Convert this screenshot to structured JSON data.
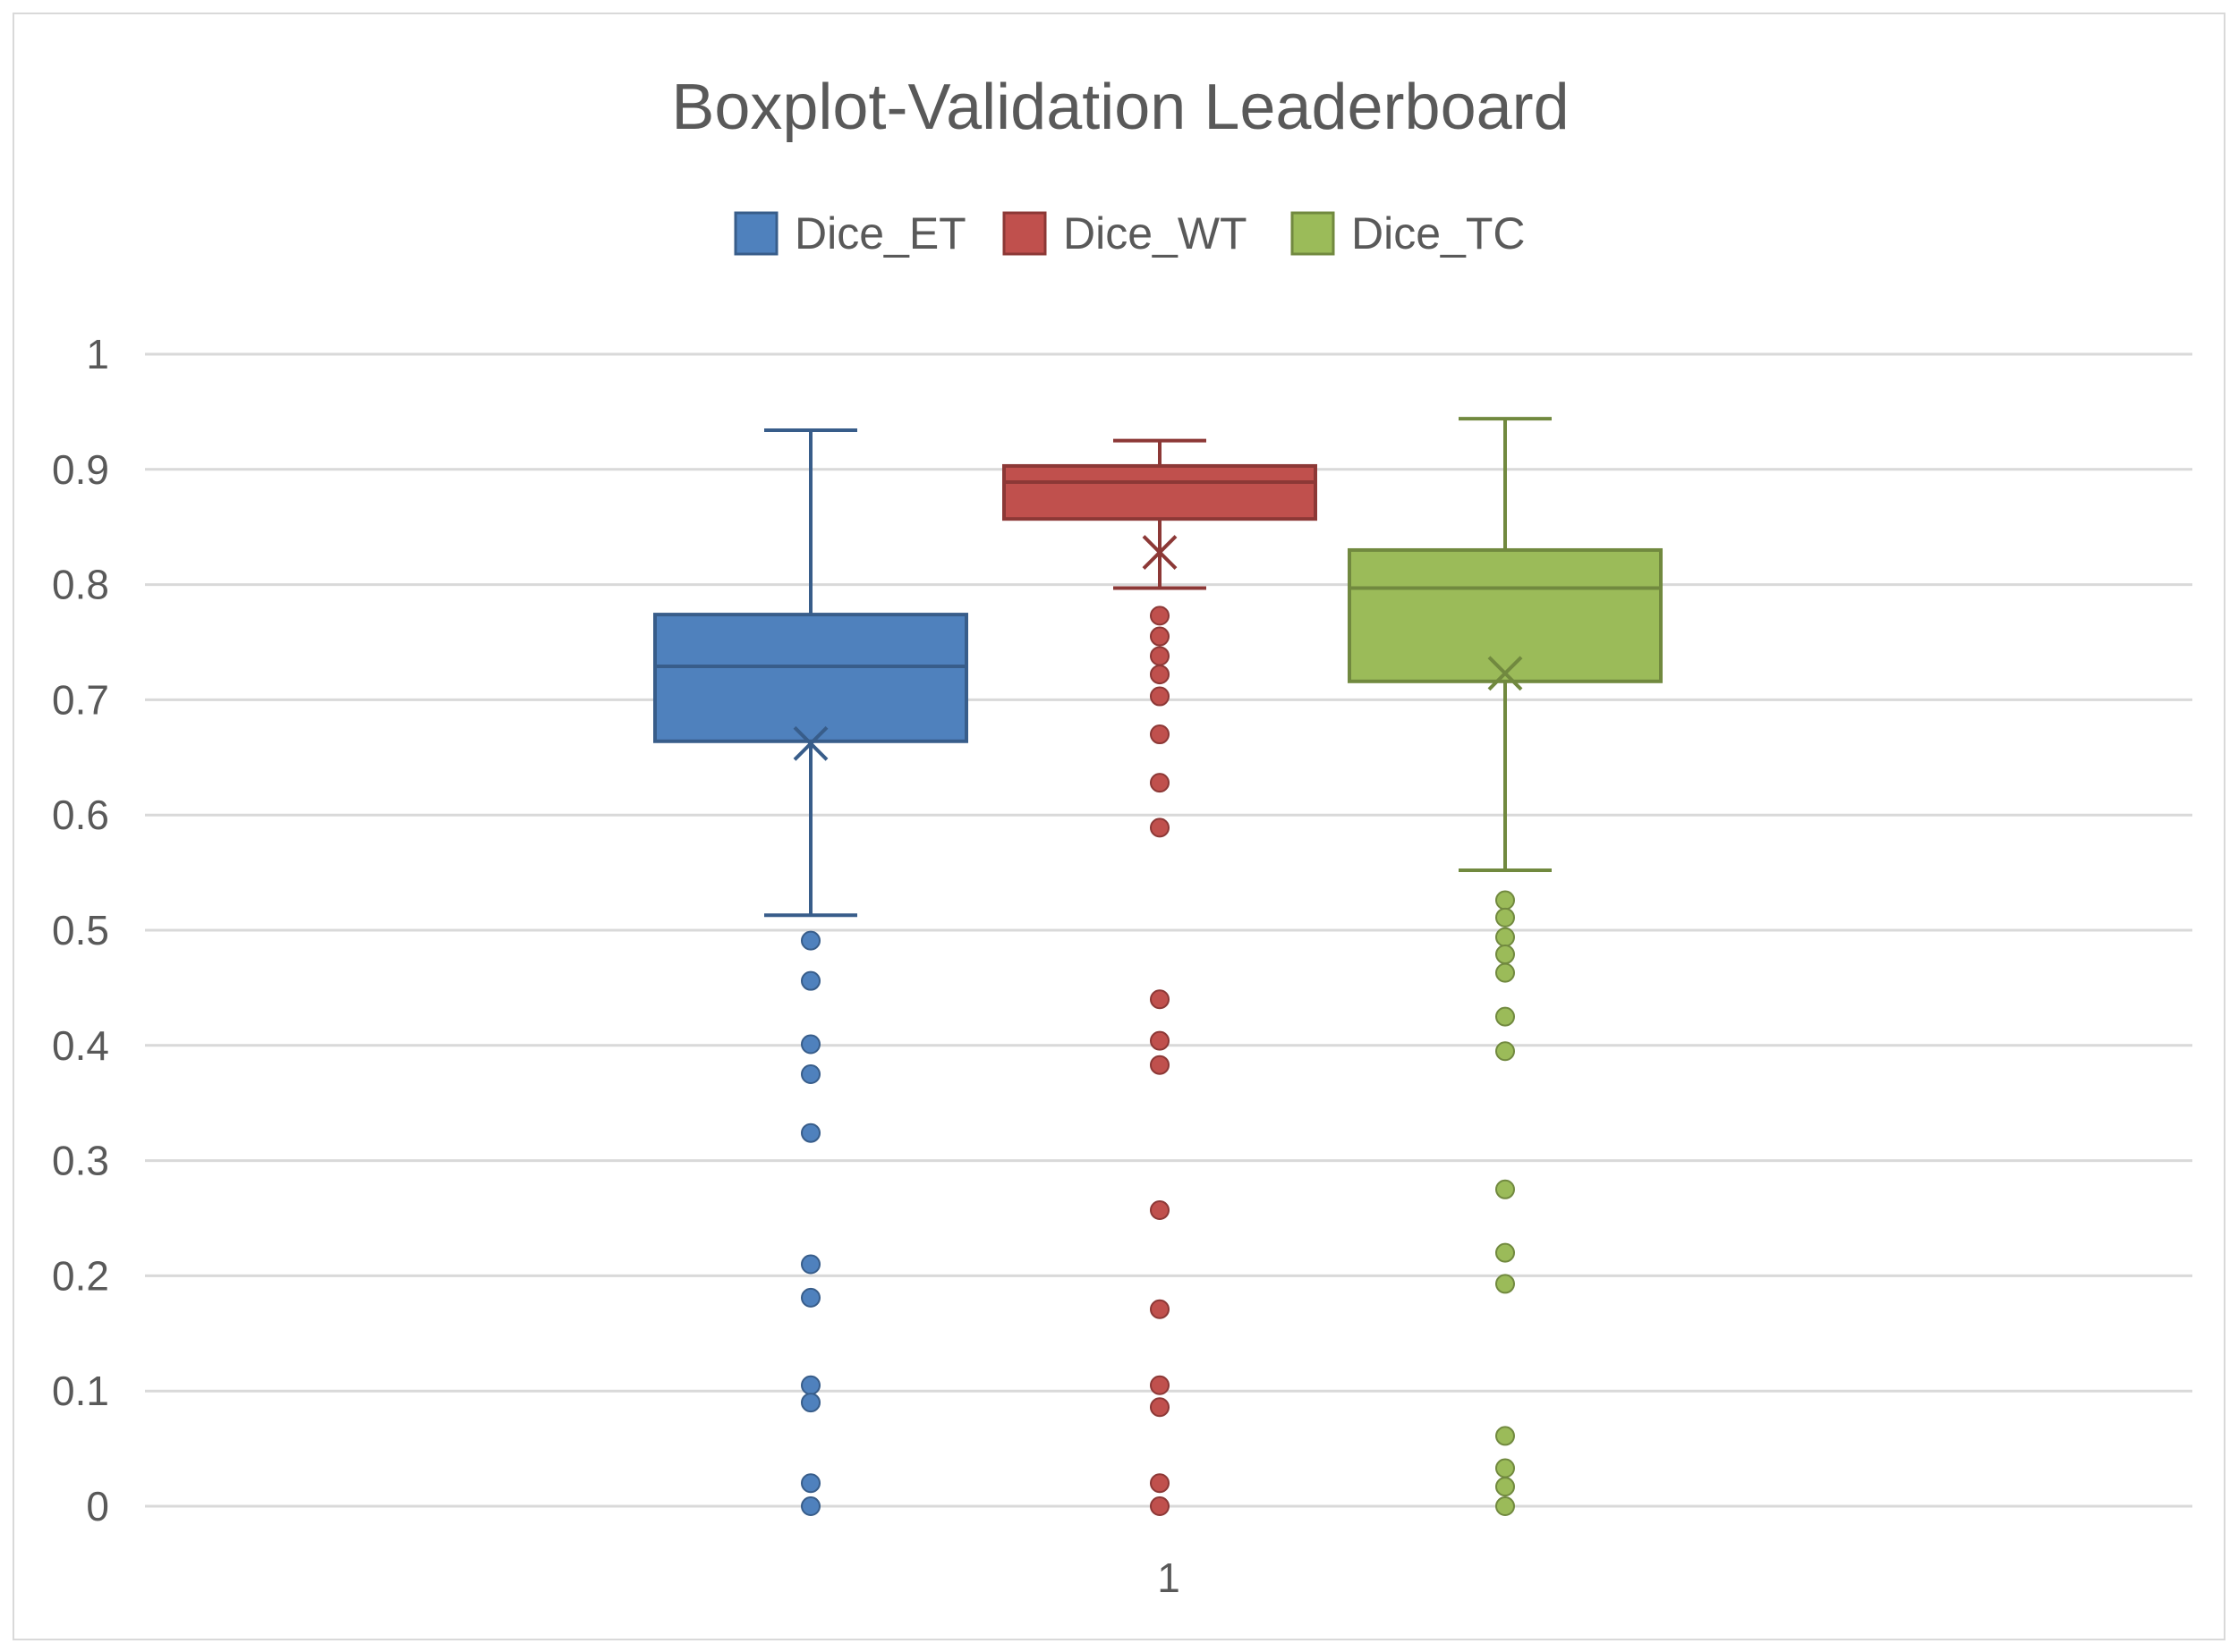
{
  "chart_data": {
    "type": "boxplot",
    "title": "Boxplot-Validation Leaderboard",
    "xlabel": "",
    "ylabel": "",
    "categories": [
      "1"
    ],
    "ylim": [
      0,
      1
    ],
    "yticks": [
      "0",
      "0.1",
      "0.2",
      "0.3",
      "0.4",
      "0.5",
      "0.6",
      "0.7",
      "0.8",
      "0.9",
      "1"
    ],
    "grid": true,
    "legend_position": "top",
    "series": [
      {
        "name": "Dice_ET",
        "color": "#4f81bd",
        "edge_color": "#385d8a",
        "whisker_low": 0.513,
        "q1": 0.664,
        "median": 0.729,
        "q3": 0.774,
        "whisker_high": 0.934,
        "mean": 0.662,
        "outliers": [
          0.491,
          0.456,
          0.401,
          0.375,
          0.324,
          0.21,
          0.181,
          0.105,
          0.09,
          0.02,
          0.0
        ]
      },
      {
        "name": "Dice_WT",
        "color": "#c0504d",
        "edge_color": "#8c3836",
        "whisker_low": 0.797,
        "q1": 0.857,
        "median": 0.889,
        "q3": 0.903,
        "whisker_high": 0.925,
        "mean": 0.828,
        "outliers": [
          0.773,
          0.755,
          0.738,
          0.722,
          0.703,
          0.67,
          0.628,
          0.589,
          0.44,
          0.404,
          0.383,
          0.257,
          0.171,
          0.105,
          0.086,
          0.02,
          0.0
        ]
      },
      {
        "name": "Dice_TC",
        "color": "#9bbb59",
        "edge_color": "#71893f",
        "whisker_low": 0.552,
        "q1": 0.716,
        "median": 0.797,
        "q3": 0.83,
        "whisker_high": 0.944,
        "mean": 0.723,
        "outliers": [
          0.526,
          0.511,
          0.494,
          0.479,
          0.463,
          0.425,
          0.395,
          0.275,
          0.22,
          0.193,
          0.061,
          0.033,
          0.017,
          0.0
        ]
      }
    ]
  }
}
